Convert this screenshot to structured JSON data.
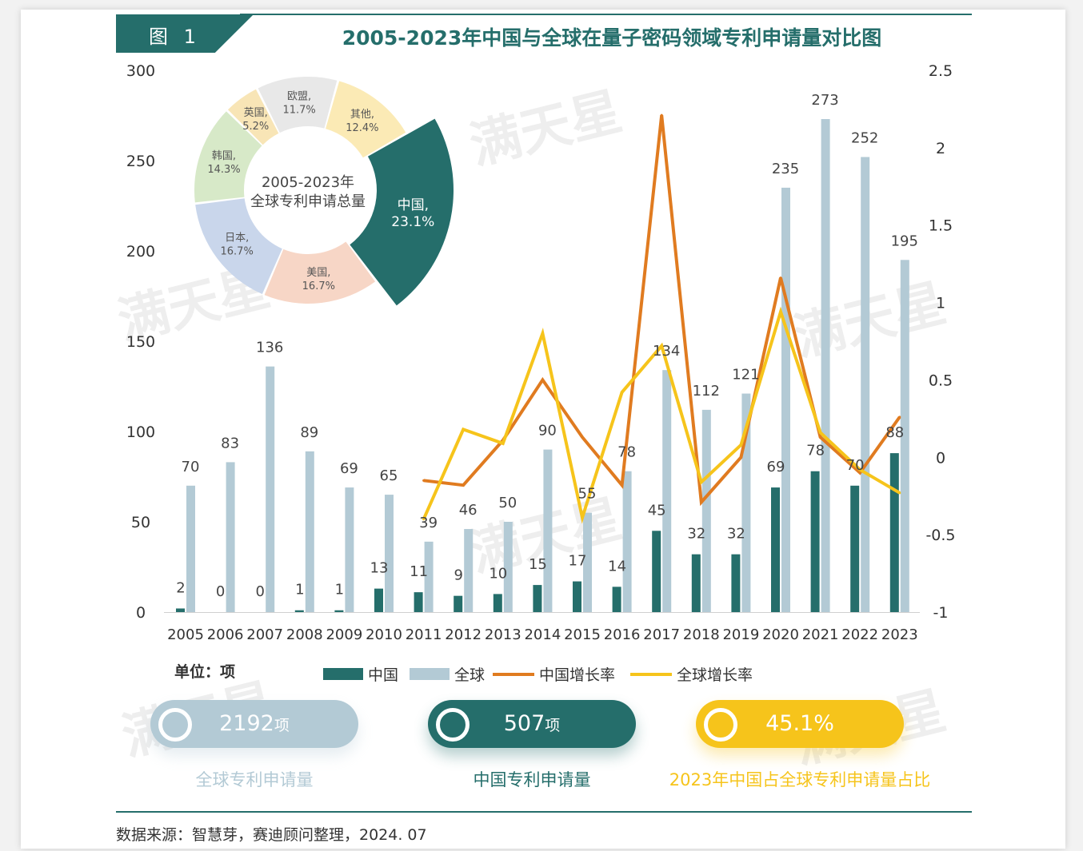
{
  "figure_label": "图 1",
  "title": "2005-2023年中国与全球在量子密码领域专利申请量对比图",
  "unit_label": "单位：项",
  "legend": [
    {
      "label": "中国",
      "type": "bar",
      "color": "#256e6b"
    },
    {
      "label": "全球",
      "type": "bar",
      "color": "#b3cad5"
    },
    {
      "label": "中国增长率",
      "type": "line",
      "color": "#e07b20"
    },
    {
      "label": "全球增长率",
      "type": "line",
      "color": "#f6c41b"
    }
  ],
  "stats": [
    {
      "value": "2192",
      "unit": "项",
      "caption": "全球专利申请量",
      "color": "#b3cad5",
      "caption_color": "#b3cad5"
    },
    {
      "value": "507",
      "unit": "项",
      "caption": "中国专利申请量",
      "color": "#256e6b",
      "caption_color": "#256e6b"
    },
    {
      "value": "45.1%",
      "unit": "",
      "caption": "2023年中国占全球专利申请量占比",
      "color": "#f6c41b",
      "caption_color": "#f6c41b"
    }
  ],
  "source": "数据来源：智慧芽，赛迪顾问整理，2024. 07",
  "watermark": "满天星",
  "chart_data": [
    {
      "type": "bar",
      "categories": [
        "2005",
        "2006",
        "2007",
        "2008",
        "2009",
        "2010",
        "2011",
        "2012",
        "2013",
        "2014",
        "2015",
        "2016",
        "2017",
        "2018",
        "2019",
        "2020",
        "2021",
        "2022",
        "2023"
      ],
      "series": [
        {
          "name": "中国",
          "type": "bar",
          "color": "#256e6b",
          "values": [
            2,
            0,
            0,
            1,
            1,
            13,
            11,
            9,
            10,
            15,
            17,
            14,
            45,
            32,
            32,
            69,
            78,
            70,
            88
          ]
        },
        {
          "name": "全球",
          "type": "bar",
          "color": "#b3cad5",
          "values": [
            70,
            83,
            136,
            89,
            69,
            65,
            39,
            46,
            50,
            90,
            55,
            78,
            134,
            112,
            121,
            235,
            273,
            252,
            195
          ]
        },
        {
          "name": "中国增长率",
          "type": "line",
          "axis": "right",
          "color": "#e07b20",
          "values": [
            null,
            null,
            null,
            null,
            null,
            null,
            -0.15,
            -0.18,
            0.11,
            0.5,
            0.13,
            -0.18,
            2.21,
            -0.29,
            0.0,
            1.16,
            0.13,
            -0.1,
            0.26
          ]
        },
        {
          "name": "全球增长率",
          "type": "line",
          "axis": "right",
          "color": "#f6c41b",
          "values": [
            null,
            null,
            null,
            null,
            null,
            null,
            -0.4,
            0.18,
            0.09,
            0.8,
            -0.39,
            0.42,
            0.72,
            -0.16,
            0.08,
            0.94,
            0.16,
            -0.08,
            -0.23
          ]
        }
      ],
      "y_left": {
        "min": 0,
        "max": 300,
        "ticks": [
          "300",
          "250",
          "200",
          "150",
          "100",
          "50",
          "0"
        ]
      },
      "y_right": {
        "min": -1,
        "max": 2.5,
        "ticks": [
          "2.5",
          "2",
          "1.5",
          "1",
          "0.5",
          "0",
          "-0.5",
          "-1"
        ]
      },
      "grid": false
    },
    {
      "type": "pie",
      "center_label": [
        "2005-2023年",
        "全球专利申请总量"
      ],
      "slices": [
        {
          "label": "中国",
          "pct": "23.1%",
          "value": 23.1,
          "color": "#256e6b",
          "text_color": "#ffffff"
        },
        {
          "label": "美国",
          "pct": "16.7%",
          "value": 16.7,
          "color": "#f7d6c6",
          "text_color": "#555555"
        },
        {
          "label": "日本",
          "pct": "16.7%",
          "value": 16.7,
          "color": "#c9d6eb",
          "text_color": "#555555"
        },
        {
          "label": "韩国",
          "pct": "14.3%",
          "value": 14.3,
          "color": "#d7e9c8",
          "text_color": "#555555"
        },
        {
          "label": "英国",
          "pct": "5.2%",
          "value": 5.2,
          "color": "#f8e5b6",
          "text_color": "#555555"
        },
        {
          "label": "欧盟",
          "pct": "11.7%",
          "value": 11.7,
          "color": "#e8e8e8",
          "text_color": "#555555"
        },
        {
          "label": "其他",
          "pct": "12.4%",
          "value": 12.4,
          "color": "#fbeab5",
          "text_color": "#555555"
        }
      ]
    }
  ]
}
